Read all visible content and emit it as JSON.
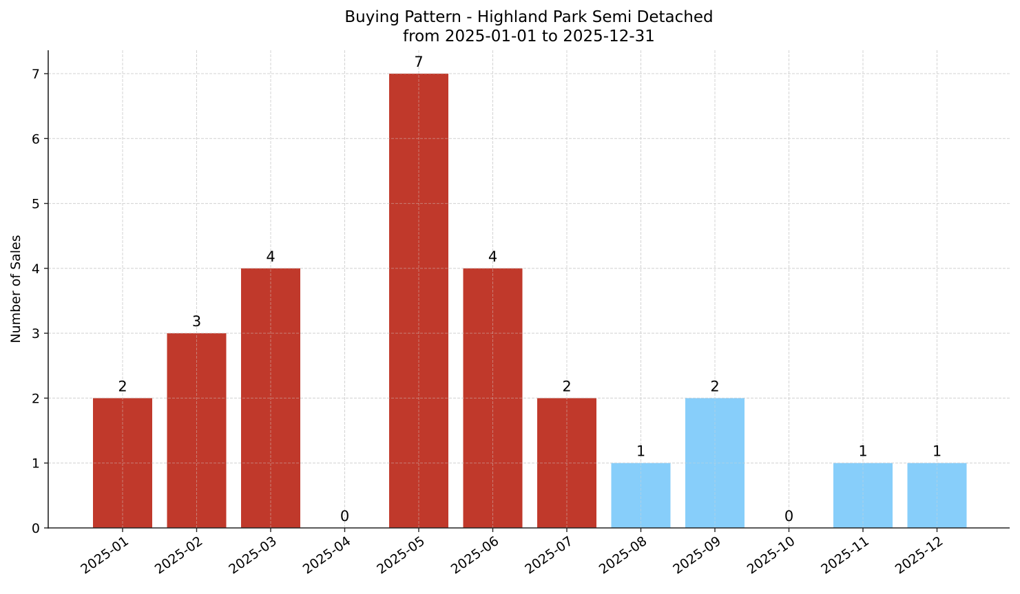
{
  "chart_data": {
    "type": "bar",
    "title": "Buying Pattern - Highland Park Semi Detached",
    "subtitle": "from 2025-01-01 to 2025-12-31",
    "xlabel": "",
    "ylabel": "Number of Sales",
    "categories": [
      "2025-01",
      "2025-02",
      "2025-03",
      "2025-04",
      "2025-05",
      "2025-06",
      "2025-07",
      "2025-08",
      "2025-09",
      "2025-10",
      "2025-11",
      "2025-12"
    ],
    "values": [
      2,
      3,
      4,
      0,
      7,
      4,
      2,
      1,
      2,
      0,
      1,
      1
    ],
    "bar_colors": [
      "#c0392b",
      "#c0392b",
      "#c0392b",
      "#c0392b",
      "#c0392b",
      "#c0392b",
      "#c0392b",
      "#87cefa",
      "#87cefa",
      "#87cefa",
      "#87cefa",
      "#87cefa"
    ],
    "ylim": [
      0,
      7.35
    ],
    "yticks": [
      0,
      1,
      2,
      3,
      4,
      5,
      6,
      7
    ],
    "grid": true,
    "grid_style": "dashed",
    "data_labels": true,
    "legend": null
  },
  "colors": {
    "red": "#c0392b",
    "light_blue": "#87cefa",
    "grid": "#d3d3d3",
    "axis": "#222222"
  }
}
